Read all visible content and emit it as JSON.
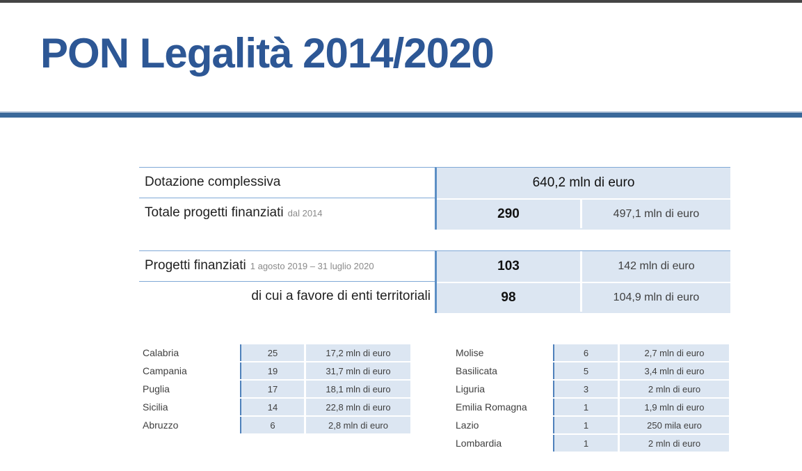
{
  "page": {
    "title": "PON Legalità 2014/2020"
  },
  "colors": {
    "title_blue": "#2d5795",
    "rule_blue": "#3a689a",
    "cell_bg_blue": "#dce6f2",
    "line_blue": "#7fa8d6",
    "accent_blue": "#5c8fc5",
    "top_bar_gray": "#454545"
  },
  "summary_table": {
    "rows": [
      {
        "label": "Dotazione complessiva",
        "value": "640,2 mln di euro"
      },
      {
        "label": "Totale progetti finanziati",
        "sublabel": "dal 2014",
        "count": "290",
        "amount": "497,1 mln di euro"
      }
    ]
  },
  "period_table": {
    "rows": [
      {
        "label": "Progetti finanziati",
        "sublabel": "1 agosto 2019 – 31 luglio 2020",
        "count": "103",
        "amount": "142 mln di euro"
      },
      {
        "label": "di cui a favore di enti territoriali",
        "count": "98",
        "amount": "104,9 mln di euro"
      }
    ]
  },
  "regions_left": {
    "rows": [
      {
        "region": "Calabria",
        "count": "25",
        "amount": "17,2 mln di euro"
      },
      {
        "region": "Campania",
        "count": "19",
        "amount": "31,7 mln di euro"
      },
      {
        "region": "Puglia",
        "count": "17",
        "amount": "18,1 mln di euro"
      },
      {
        "region": "Sicilia",
        "count": "14",
        "amount": "22,8 mln di euro"
      },
      {
        "region": "Abruzzo",
        "count": "6",
        "amount": "2,8 mln di euro"
      }
    ]
  },
  "regions_right": {
    "rows": [
      {
        "region": "Molise",
        "count": "6",
        "amount": "2,7 mln di euro"
      },
      {
        "region": "Basilicata",
        "count": "5",
        "amount": "3,4 mln di euro"
      },
      {
        "region": "Liguria",
        "count": "3",
        "amount": "2 mln di euro"
      },
      {
        "region": "Emilia Romagna",
        "count": "1",
        "amount": "1,9 mln di euro"
      },
      {
        "region": "Lazio",
        "count": "1",
        "amount": "250 mila euro"
      },
      {
        "region": "Lombardia",
        "count": "1",
        "amount": "2 mln di euro"
      }
    ]
  }
}
